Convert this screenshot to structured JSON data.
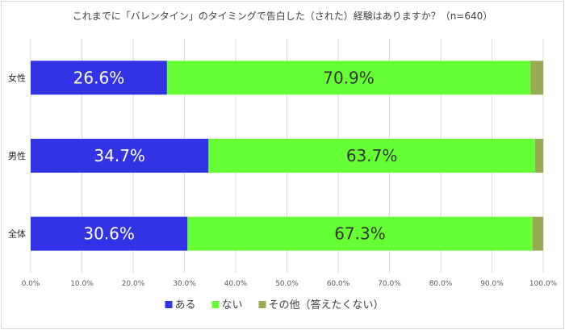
{
  "chart_data": {
    "type": "bar",
    "orientation": "horizontal",
    "stacked": true,
    "title": "これまでに「バレンタイン」のタイミングで告白した（された）経験はありますか？（n=640）",
    "categories": [
      "女性",
      "男性",
      "全体"
    ],
    "series": [
      {
        "name": "ある",
        "values": [
          26.6,
          34.7,
          30.6
        ],
        "labels": [
          "26.6%",
          "34.7%",
          "30.6%"
        ],
        "color": "#3333e6"
      },
      {
        "name": "ない",
        "values": [
          70.9,
          63.7,
          67.3
        ],
        "labels": [
          "70.9%",
          "63.7%",
          "67.3%"
        ],
        "color": "#66ff33"
      },
      {
        "name": "その他（答えたくない）",
        "values": [
          2.5,
          1.6,
          2.1
        ],
        "color": "#99aa55"
      }
    ],
    "xlim": [
      0,
      100
    ],
    "xticks": [
      "0.0%",
      "10.0%",
      "20.0%",
      "30.0%",
      "40.0%",
      "50.0%",
      "60.0%",
      "70.0%",
      "80.0%",
      "90.0%",
      "100.0%"
    ],
    "grid": true,
    "legend": "bottom"
  }
}
